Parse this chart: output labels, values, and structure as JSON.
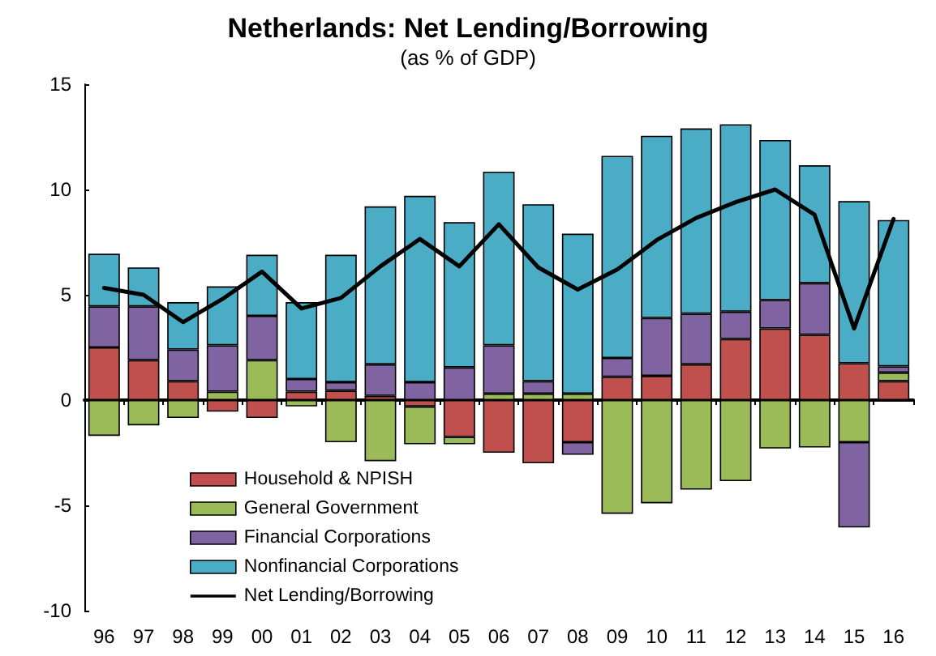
{
  "chart_data": {
    "type": "bar",
    "title": "Netherlands: Net Lending/Borrowing",
    "subtitle": "(as % of GDP)",
    "categories": [
      "96",
      "97",
      "98",
      "99",
      "00",
      "01",
      "02",
      "03",
      "04",
      "05",
      "06",
      "07",
      "08",
      "09",
      "10",
      "11",
      "12",
      "13",
      "14",
      "15",
      "16"
    ],
    "stacked": true,
    "series": [
      {
        "name": "Household & NPISH",
        "color": "#c0504d",
        "values": [
          2.5,
          1.9,
          0.9,
          -0.55,
          -0.85,
          0.4,
          0.45,
          0.2,
          -0.3,
          -1.75,
          -2.5,
          -3.0,
          -2.0,
          1.1,
          1.15,
          1.7,
          2.9,
          3.4,
          3.1,
          1.75,
          0.9
        ]
      },
      {
        "name": "General Government",
        "color": "#9bbb59",
        "values": [
          -1.7,
          -1.2,
          -0.85,
          0.4,
          1.9,
          -0.3,
          -2.0,
          -2.9,
          -1.8,
          -0.35,
          0.3,
          0.3,
          0.3,
          -5.4,
          -4.9,
          -4.25,
          -3.85,
          -2.3,
          -2.25,
          -2.0,
          0.4
        ]
      },
      {
        "name": "Financial Corporations",
        "color": "#8064a2",
        "values": [
          1.95,
          2.55,
          1.5,
          2.2,
          2.1,
          0.6,
          0.4,
          1.5,
          0.85,
          1.55,
          2.3,
          0.6,
          -0.6,
          0.9,
          2.75,
          2.4,
          1.3,
          1.35,
          2.45,
          -4.05,
          0.3
        ]
      },
      {
        "name": "Nonfinancial Corporations",
        "color": "#4bacc6",
        "values": [
          2.5,
          1.85,
          2.25,
          2.8,
          2.9,
          3.65,
          6.05,
          7.5,
          8.85,
          6.9,
          8.25,
          8.4,
          7.6,
          9.6,
          8.65,
          8.8,
          8.9,
          7.6,
          5.6,
          7.7,
          6.95
        ]
      },
      {
        "name": "Net Lending/Borrowing",
        "type": "line",
        "color": "#000000",
        "values": [
          5.33,
          5.0,
          3.7,
          4.8,
          6.1,
          4.35,
          4.85,
          6.35,
          7.65,
          6.35,
          8.35,
          6.3,
          5.25,
          6.2,
          7.6,
          8.65,
          9.4,
          10.0,
          8.8,
          3.4,
          8.6
        ]
      }
    ],
    "ylim": [
      -10,
      15
    ],
    "yticks": [
      -10,
      -5,
      0,
      5,
      10,
      15
    ],
    "legend": "bottom left",
    "marker": "none"
  }
}
